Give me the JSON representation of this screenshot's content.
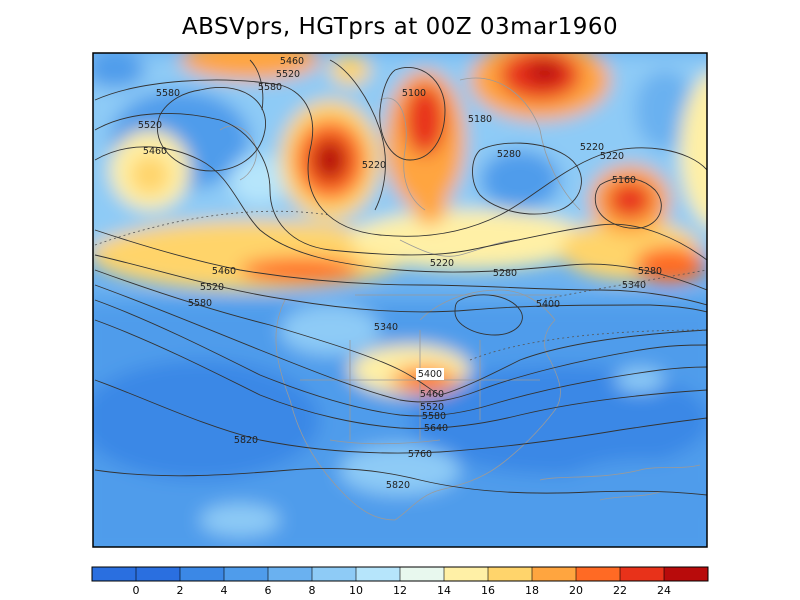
{
  "title": "ABSVprs, HGTprs at 00Z  03mar1960",
  "contour_labels": [
    "5460",
    "5520",
    "5580",
    "5580",
    "5520",
    "5460",
    "5100",
    "5180",
    "5220",
    "5220",
    "5220",
    "5280",
    "5160",
    "5220",
    "5280",
    "5340",
    "5280",
    "5400",
    "5460",
    "5520",
    "5580",
    "5340",
    "5400",
    "5460",
    "5520",
    "5580",
    "5640",
    "5820",
    "5760",
    "5820"
  ],
  "colorbar": {
    "ticks": [
      "0",
      "2",
      "4",
      "6",
      "8",
      "10",
      "12",
      "14",
      "16",
      "18",
      "20",
      "22",
      "24"
    ],
    "colors": [
      "#2a6fe0",
      "#3b88e6",
      "#4f9ceb",
      "#6ab1f0",
      "#8ecbf6",
      "#b6e5fb",
      "#e8f8ee",
      "#fff0a6",
      "#ffd46b",
      "#ffa53f",
      "#ff6a24",
      "#e8321a",
      "#b80b0b"
    ]
  },
  "colors": {
    "frame": "#000000",
    "contour": "#333333",
    "coast": "#9a9a9a"
  }
}
